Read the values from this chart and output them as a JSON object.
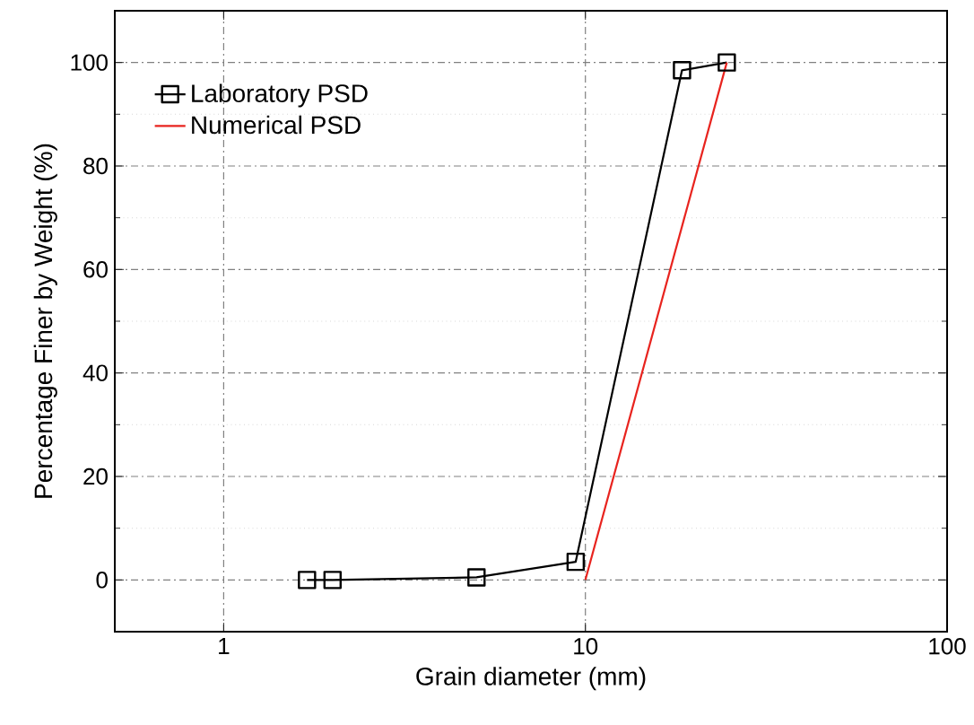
{
  "chart_data": {
    "type": "line",
    "xlabel": "Grain diameter (mm)",
    "ylabel": "Percentage Finer by Weight (%)",
    "log": "x",
    "xlim": [
      0.5,
      100
    ],
    "xticks": [
      1,
      10,
      100
    ],
    "ylim": [
      -10,
      110
    ],
    "yticks": [
      0,
      20,
      40,
      60,
      80,
      100
    ],
    "grid": true,
    "legend": "top left",
    "series": [
      {
        "name": "Laboratory PSD",
        "color": "#000000",
        "marker": "square",
        "x": [
          1.7,
          2,
          5,
          9.4,
          18.5,
          24.6
        ],
        "values": [
          0,
          0,
          0.5,
          3.5,
          98.5,
          100
        ]
      },
      {
        "name": "Numerical  PSD",
        "color": "#e8231e",
        "marker": "none",
        "x": [
          10,
          24.6
        ],
        "values": [
          0,
          100
        ]
      }
    ]
  }
}
